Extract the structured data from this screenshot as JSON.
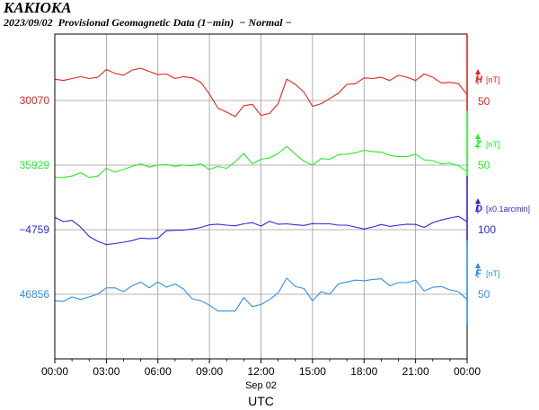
{
  "header": {
    "station": "KAKIOKA",
    "subtitle": "2023/09/02  Provisional Geomagnetic Data (1−min)  − Normal −"
  },
  "chart_data": {
    "type": "line",
    "xlabel": "UTC",
    "date_label": "Sep 02",
    "xlim": [
      0,
      24
    ],
    "x_ticks": [
      0,
      3,
      6,
      9,
      12,
      15,
      18,
      21,
      24
    ],
    "x_tick_labels": [
      "00:00",
      "03:00",
      "06:00",
      "09:00",
      "12:00",
      "15:00",
      "18:00",
      "21:00",
      "00:00"
    ],
    "grid": true,
    "x": [
      0,
      0.5,
      1,
      1.5,
      2,
      2.5,
      3,
      3.5,
      4,
      4.5,
      5,
      5.5,
      6,
      6.5,
      7,
      7.5,
      8,
      8.5,
      9,
      9.5,
      10,
      10.5,
      11,
      11.5,
      12,
      12.5,
      13,
      13.5,
      14,
      14.5,
      15,
      15.5,
      16,
      16.5,
      17,
      17.5,
      18,
      18.5,
      19,
      19.5,
      20,
      20.5,
      21,
      21.5,
      22,
      22.5,
      23,
      23.5,
      24
    ],
    "series": [
      {
        "name": "H",
        "unit": "[nT]",
        "baseline_label": "30070",
        "scale_label": "50",
        "color": "#e8221d",
        "values": [
          30103,
          30101,
          30104,
          30107,
          30104,
          30106,
          30118,
          30112,
          30109,
          30117,
          30120,
          30115,
          30110,
          30111,
          30104,
          30107,
          30105,
          30098,
          30080,
          30058,
          30052,
          30045,
          30062,
          30064,
          30047,
          30050,
          30065,
          30103,
          30095,
          30083,
          30061,
          30065,
          30073,
          30081,
          30095,
          30096,
          30105,
          30104,
          30106,
          30101,
          30109,
          30106,
          30101,
          30111,
          30106,
          30097,
          30098,
          30096,
          30079
        ]
      },
      {
        "name": "Z",
        "unit": "[nT]",
        "baseline_label": "35929",
        "scale_label": "50",
        "color": "#22ee22",
        "values": [
          35910,
          35910,
          35912,
          35917,
          35910,
          35912,
          35924,
          35918,
          35922,
          35927,
          35931,
          35926,
          35929,
          35930,
          35927,
          35929,
          35928,
          35931,
          35922,
          35927,
          35924,
          35934,
          35947,
          35931,
          35938,
          35940,
          35947,
          35958,
          35946,
          35935,
          35929,
          35939,
          35938,
          35945,
          35946,
          35948,
          35952,
          35950,
          35949,
          35944,
          35942,
          35942,
          35946,
          35937,
          35936,
          35931,
          35932,
          35928,
          35919
        ]
      },
      {
        "name": "D",
        "unit": "[x0.1arcmin]",
        "baseline_label": "−4759",
        "scale_label": "100",
        "color": "#2a2ad6",
        "values": [
          -4721,
          -4734,
          -4730,
          -4751,
          -4780,
          -4795,
          -4805,
          -4802,
          -4798,
          -4793,
          -4785,
          -4787,
          -4785,
          -4762,
          -4761,
          -4760,
          -4757,
          -4752,
          -4744,
          -4742,
          -4745,
          -4747,
          -4741,
          -4737,
          -4748,
          -4733,
          -4742,
          -4741,
          -4744,
          -4746,
          -4740,
          -4741,
          -4741,
          -4745,
          -4745,
          -4751,
          -4757,
          -4751,
          -4743,
          -4749,
          -4745,
          -4742,
          -4743,
          -4752,
          -4737,
          -4729,
          -4723,
          -4718,
          -4734
        ]
      },
      {
        "name": "F",
        "unit": "[nT]",
        "baseline_label": "46856",
        "scale_label": "50",
        "color": "#2f8fe6",
        "values": [
          46846,
          46845,
          46852,
          46848,
          46852,
          46856,
          46866,
          46866,
          46860,
          46869,
          46875,
          46866,
          46875,
          46867,
          46872,
          46864,
          46849,
          46846,
          46839,
          46830,
          46830,
          46830,
          46851,
          46837,
          46840,
          46848,
          46858,
          46881,
          46868,
          46865,
          46846,
          46860,
          46856,
          46872,
          46875,
          46878,
          46877,
          46879,
          46880,
          46869,
          46874,
          46874,
          46878,
          46861,
          46867,
          46868,
          46863,
          46860,
          46848
        ]
      }
    ]
  }
}
